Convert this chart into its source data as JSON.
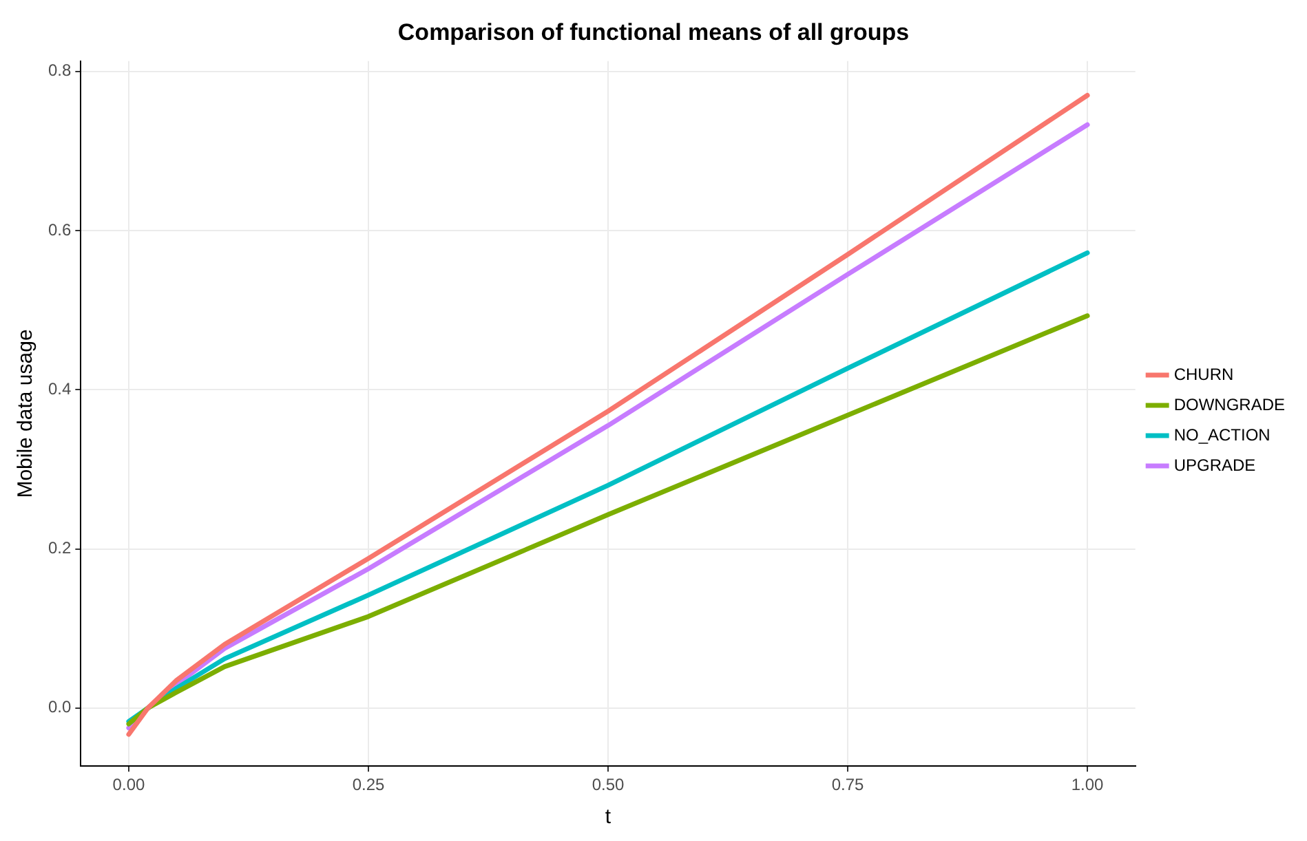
{
  "chart_data": {
    "type": "line",
    "title": "Comparison of functional means of all groups",
    "xlabel": "t",
    "ylabel": "Mobile data usage",
    "x": [
      0,
      0.02,
      0.05,
      0.1,
      0.25,
      0.5,
      0.75,
      1.0
    ],
    "series": [
      {
        "name": "CHURN",
        "color": "#f8766d",
        "values": [
          -0.033,
          0.0,
          0.035,
          0.08,
          0.188,
          0.373,
          0.57,
          0.77
        ]
      },
      {
        "name": "DOWNGRADE",
        "color": "#7cae00",
        "values": [
          -0.02,
          0.0,
          0.02,
          0.052,
          0.115,
          0.243,
          0.368,
          0.493
        ]
      },
      {
        "name": "NO_ACTION",
        "color": "#00bfc4",
        "values": [
          -0.017,
          0.0,
          0.025,
          0.062,
          0.142,
          0.28,
          0.427,
          0.572
        ]
      },
      {
        "name": "UPGRADE",
        "color": "#c77cff",
        "values": [
          -0.025,
          0.0,
          0.03,
          0.075,
          0.175,
          0.355,
          0.545,
          0.733
        ]
      }
    ],
    "xlim": [
      -0.05,
      1.05
    ],
    "ylim": [
      -0.073,
      0.813
    ],
    "xticks": [
      {
        "value": 0,
        "label": "0.00"
      },
      {
        "value": 0.25,
        "label": "0.25"
      },
      {
        "value": 0.5,
        "label": "0.50"
      },
      {
        "value": 0.75,
        "label": "0.75"
      },
      {
        "value": 1,
        "label": "1.00"
      }
    ],
    "yticks": [
      {
        "value": 0,
        "label": "0.0"
      },
      {
        "value": 0.2,
        "label": "0.2"
      },
      {
        "value": 0.4,
        "label": "0.4"
      },
      {
        "value": 0.6,
        "label": "0.6"
      },
      {
        "value": 0.8,
        "label": "0.8"
      }
    ],
    "grid": true,
    "legend": "right",
    "marker": "none",
    "line_style": "solid"
  }
}
